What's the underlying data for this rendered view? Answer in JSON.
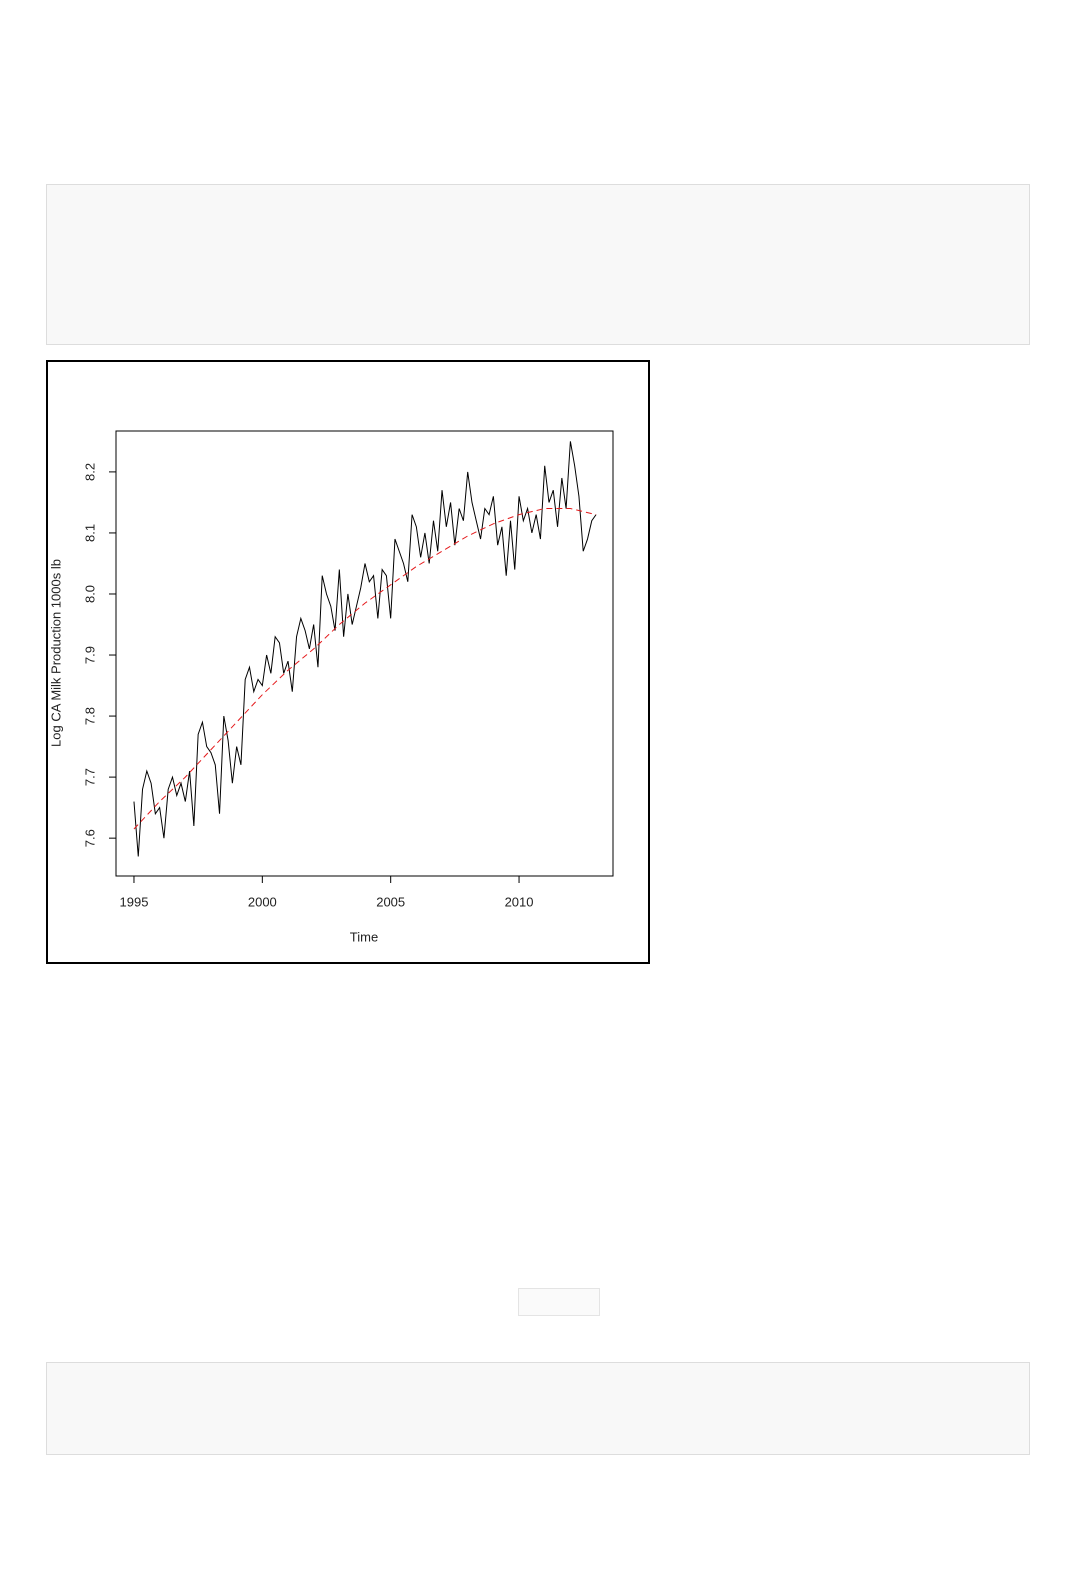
{
  "chart_data": {
    "type": "line",
    "xlabel": "Time",
    "ylabel": "Log CA Milk Production 1000s lb",
    "xlim": [
      1994.3,
      2013.66
    ],
    "ylim": [
      7.538,
      8.267
    ],
    "xticks": [
      1995,
      2000,
      2005,
      2010
    ],
    "yticks": [
      7.6,
      7.7,
      7.8,
      7.9,
      {
        "value": 8,
        "label": "8.0"
      },
      8.1,
      8.2
    ],
    "series": [
      {
        "color": "#000000",
        "linestyle": "solid",
        "x": [
          1995,
          1995.167,
          1995.333,
          1995.5,
          1995.667,
          1995.833,
          1996,
          1996.167,
          1996.333,
          1996.5,
          1996.667,
          1996.833,
          1997,
          1997.167,
          1997.333,
          1997.5,
          1997.667,
          1997.833,
          1998,
          1998.167,
          1998.333,
          1998.5,
          1998.667,
          1998.833,
          1999,
          1999.167,
          1999.333,
          1999.5,
          1999.667,
          1999.833,
          2000,
          2000.167,
          2000.333,
          2000.5,
          2000.667,
          2000.833,
          2001,
          2001.167,
          2001.333,
          2001.5,
          2001.667,
          2001.833,
          2002,
          2002.167,
          2002.333,
          2002.5,
          2002.667,
          2002.833,
          2003,
          2003.167,
          2003.333,
          2003.5,
          2003.667,
          2003.833,
          2004,
          2004.167,
          2004.333,
          2004.5,
          2004.667,
          2004.833,
          2005,
          2005.167,
          2005.333,
          2005.5,
          2005.667,
          2005.833,
          2006,
          2006.167,
          2006.333,
          2006.5,
          2006.667,
          2006.833,
          2007,
          2007.167,
          2007.333,
          2007.5,
          2007.667,
          2007.833,
          2008,
          2008.167,
          2008.333,
          2008.5,
          2008.667,
          2008.833,
          2009,
          2009.167,
          2009.333,
          2009.5,
          2009.667,
          2009.833,
          2010,
          2010.167,
          2010.333,
          2010.5,
          2010.667,
          2010.833,
          2011,
          2011.167,
          2011.333,
          2011.5,
          2011.667,
          2011.833,
          2012,
          2012.167,
          2012.333,
          2012.5,
          2012.667,
          2012.833,
          2013
        ],
        "values": [
          7.66,
          7.57,
          7.68,
          7.71,
          7.69,
          7.64,
          7.65,
          7.6,
          7.68,
          7.7,
          7.67,
          7.69,
          7.66,
          7.71,
          7.62,
          7.77,
          7.79,
          7.75,
          7.74,
          7.72,
          7.64,
          7.8,
          7.76,
          7.69,
          7.75,
          7.72,
          7.86,
          7.88,
          7.84,
          7.86,
          7.85,
          7.9,
          7.87,
          7.93,
          7.92,
          7.87,
          7.89,
          7.84,
          7.93,
          7.96,
          7.94,
          7.91,
          7.95,
          7.88,
          8.03,
          8.0,
          7.98,
          7.94,
          8.04,
          7.93,
          8.0,
          7.95,
          7.98,
          8.01,
          8.05,
          8.02,
          8.03,
          7.96,
          8.04,
          8.03,
          7.96,
          8.09,
          8.07,
          8.05,
          8.02,
          8.13,
          8.11,
          8.06,
          8.1,
          8.05,
          8.12,
          8.07,
          8.17,
          8.11,
          8.15,
          8.08,
          8.14,
          8.12,
          8.2,
          8.15,
          8.12,
          8.09,
          8.14,
          8.13,
          8.16,
          8.08,
          8.11,
          8.03,
          8.12,
          8.04,
          8.16,
          8.12,
          8.14,
          8.1,
          8.13,
          8.09,
          8.21,
          8.15,
          8.17,
          8.11,
          8.19,
          8.14,
          8.25,
          8.21,
          8.16,
          8.07,
          8.09,
          8.12,
          8.13
        ]
      },
      {
        "color": "#e41a1c",
        "linestyle": "dashed",
        "x": [
          1995,
          1996,
          1997,
          1998,
          1999,
          2000,
          2001,
          2002,
          2003,
          2004,
          2005,
          2006,
          2007,
          2008,
          2009,
          2010,
          2011,
          2012,
          2013
        ],
        "values": [
          7.615,
          7.66,
          7.7,
          7.745,
          7.79,
          7.835,
          7.875,
          7.91,
          7.95,
          7.985,
          8.015,
          8.045,
          8.07,
          8.095,
          8.115,
          8.13,
          8.14,
          8.14,
          8.13
        ]
      }
    ]
  }
}
